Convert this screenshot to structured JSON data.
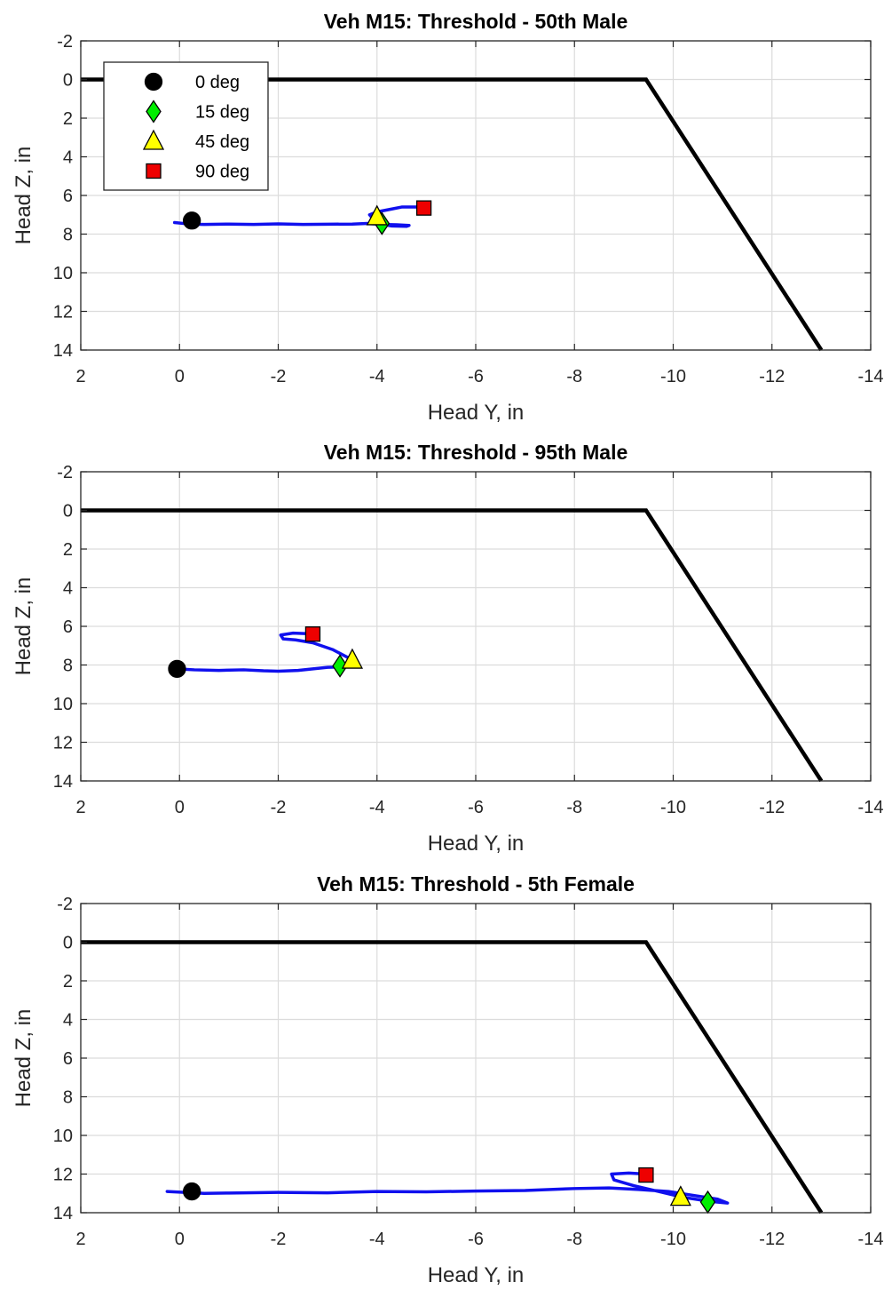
{
  "chart_data": [
    {
      "type": "line",
      "title": "Veh M15: Threshold - 50th Male",
      "xlabel": "Head Y, in",
      "ylabel": "Head Z, in",
      "xlim": [
        2,
        -14
      ],
      "ylim": [
        -2,
        14
      ],
      "y_reversed": true,
      "grid": true,
      "xticks": [
        "2",
        "0",
        "-2",
        "-4",
        "-6",
        "-8",
        "-10",
        "-12",
        "-14"
      ],
      "yticks": [
        "-2",
        "0",
        "2",
        "4",
        "6",
        "8",
        "10",
        "12",
        "14"
      ],
      "boundary": {
        "name": "",
        "color": "#000000",
        "x": [
          2,
          -9.45,
          -13
        ],
        "y": [
          0,
          0,
          14
        ]
      },
      "trajectory": {
        "color": "#1010ee",
        "x": [
          0.1,
          -0.2,
          -0.5,
          -1.0,
          -1.5,
          -2.0,
          -2.5,
          -3.0,
          -3.5,
          -3.8,
          -4.1,
          -4.4,
          -4.65,
          -4.6,
          -4.3,
          -4.0,
          -3.85,
          -4.0,
          -4.3,
          -4.5,
          -4.8,
          -4.95
        ],
        "y": [
          7.4,
          7.48,
          7.5,
          7.48,
          7.5,
          7.47,
          7.5,
          7.49,
          7.48,
          7.45,
          7.5,
          7.52,
          7.55,
          7.6,
          7.58,
          7.45,
          7.0,
          6.85,
          6.7,
          6.6,
          6.6,
          6.65
        ]
      },
      "markers": [
        {
          "label": "0 deg",
          "shape": "circle",
          "color": "#000000",
          "x": -0.25,
          "y": 7.3
        },
        {
          "label": "15 deg",
          "shape": "diamond",
          "color": "#00ee00",
          "x": -4.1,
          "y": 7.45
        },
        {
          "label": "45 deg",
          "shape": "triangle",
          "color": "#ffff00",
          "x": -4.0,
          "y": 7.1
        },
        {
          "label": "90 deg",
          "shape": "square",
          "color": "#ee0000",
          "x": -4.95,
          "y": 6.65
        }
      ],
      "legend": {
        "location": "top-left",
        "entries": [
          {
            "label": "0 deg",
            "shape": "circle",
            "color": "#000000"
          },
          {
            "label": "15 deg",
            "shape": "diamond",
            "color": "#00ee00"
          },
          {
            "label": "45 deg",
            "shape": "triangle",
            "color": "#ffff00"
          },
          {
            "label": "90 deg",
            "shape": "square",
            "color": "#ee0000"
          }
        ]
      }
    },
    {
      "type": "line",
      "title": "Veh M15: Threshold - 95th Male",
      "xlabel": "Head Y, in",
      "ylabel": "Head Z, in",
      "xlim": [
        2,
        -14
      ],
      "ylim": [
        -2,
        14
      ],
      "y_reversed": true,
      "grid": true,
      "xticks": [
        "2",
        "0",
        "-2",
        "-4",
        "-6",
        "-8",
        "-10",
        "-12",
        "-14"
      ],
      "yticks": [
        "-2",
        "0",
        "2",
        "4",
        "6",
        "8",
        "10",
        "12",
        "14"
      ],
      "boundary": {
        "name": "",
        "color": "#000000",
        "x": [
          2,
          -9.45,
          -13
        ],
        "y": [
          0,
          0,
          14
        ]
      },
      "trajectory": {
        "color": "#1010ee",
        "x": [
          0.05,
          -0.3,
          -0.8,
          -1.3,
          -1.7,
          -2.0,
          -2.4,
          -2.7,
          -3.0,
          -3.3,
          -3.5,
          -3.4,
          -3.1,
          -2.7,
          -2.35,
          -2.1,
          -2.05,
          -2.3,
          -2.6,
          -2.7
        ],
        "y": [
          8.2,
          8.25,
          8.28,
          8.25,
          8.3,
          8.32,
          8.28,
          8.2,
          8.12,
          8.1,
          7.9,
          7.6,
          7.2,
          6.85,
          6.7,
          6.65,
          6.45,
          6.35,
          6.38,
          6.4
        ]
      },
      "markers": [
        {
          "label": "0 deg",
          "shape": "circle",
          "color": "#000000",
          "x": 0.05,
          "y": 8.2
        },
        {
          "label": "15 deg",
          "shape": "diamond",
          "color": "#00ee00",
          "x": -3.25,
          "y": 8.05
        },
        {
          "label": "45 deg",
          "shape": "triangle",
          "color": "#ffff00",
          "x": -3.5,
          "y": 7.75
        },
        {
          "label": "90 deg",
          "shape": "square",
          "color": "#ee0000",
          "x": -2.7,
          "y": 6.4
        }
      ]
    },
    {
      "type": "line",
      "title": "Veh M15: Threshold - 5th Female",
      "xlabel": "Head Y, in",
      "ylabel": "Head Z, in",
      "xlim": [
        2,
        -14
      ],
      "ylim": [
        -2,
        14
      ],
      "y_reversed": true,
      "grid": true,
      "xticks": [
        "2",
        "0",
        "-2",
        "-4",
        "-6",
        "-8",
        "-10",
        "-12",
        "-14"
      ],
      "yticks": [
        "-2",
        "0",
        "2",
        "4",
        "6",
        "8",
        "10",
        "12",
        "14"
      ],
      "boundary": {
        "name": "",
        "color": "#000000",
        "x": [
          2,
          -9.45,
          -13
        ],
        "y": [
          0,
          0,
          14
        ]
      },
      "trajectory": {
        "color": "#1010ee",
        "x": [
          0.25,
          -0.5,
          -1.0,
          -2.0,
          -3.0,
          -4.0,
          -5.0,
          -6.0,
          -7.0,
          -8.0,
          -8.7,
          -9.3,
          -9.9,
          -10.4,
          -10.9,
          -11.1,
          -10.7,
          -10.2,
          -9.7,
          -9.2,
          -8.8,
          -8.75,
          -9.1,
          -9.45
        ],
        "y": [
          12.9,
          13.0,
          12.98,
          12.95,
          12.97,
          12.9,
          12.92,
          12.88,
          12.85,
          12.75,
          12.72,
          12.8,
          12.9,
          13.1,
          13.3,
          13.5,
          13.4,
          13.2,
          12.9,
          12.6,
          12.3,
          12.0,
          11.95,
          12.0
        ]
      },
      "markers": [
        {
          "label": "0 deg",
          "shape": "circle",
          "color": "#000000",
          "x": -0.25,
          "y": 12.9
        },
        {
          "label": "15 deg",
          "shape": "diamond",
          "color": "#00ee00",
          "x": -10.7,
          "y": 13.45
        },
        {
          "label": "45 deg",
          "shape": "triangle",
          "color": "#ffff00",
          "x": -10.15,
          "y": 13.2
        },
        {
          "label": "90 deg",
          "shape": "square",
          "color": "#ee0000",
          "x": -9.45,
          "y": 12.05
        }
      ]
    }
  ]
}
